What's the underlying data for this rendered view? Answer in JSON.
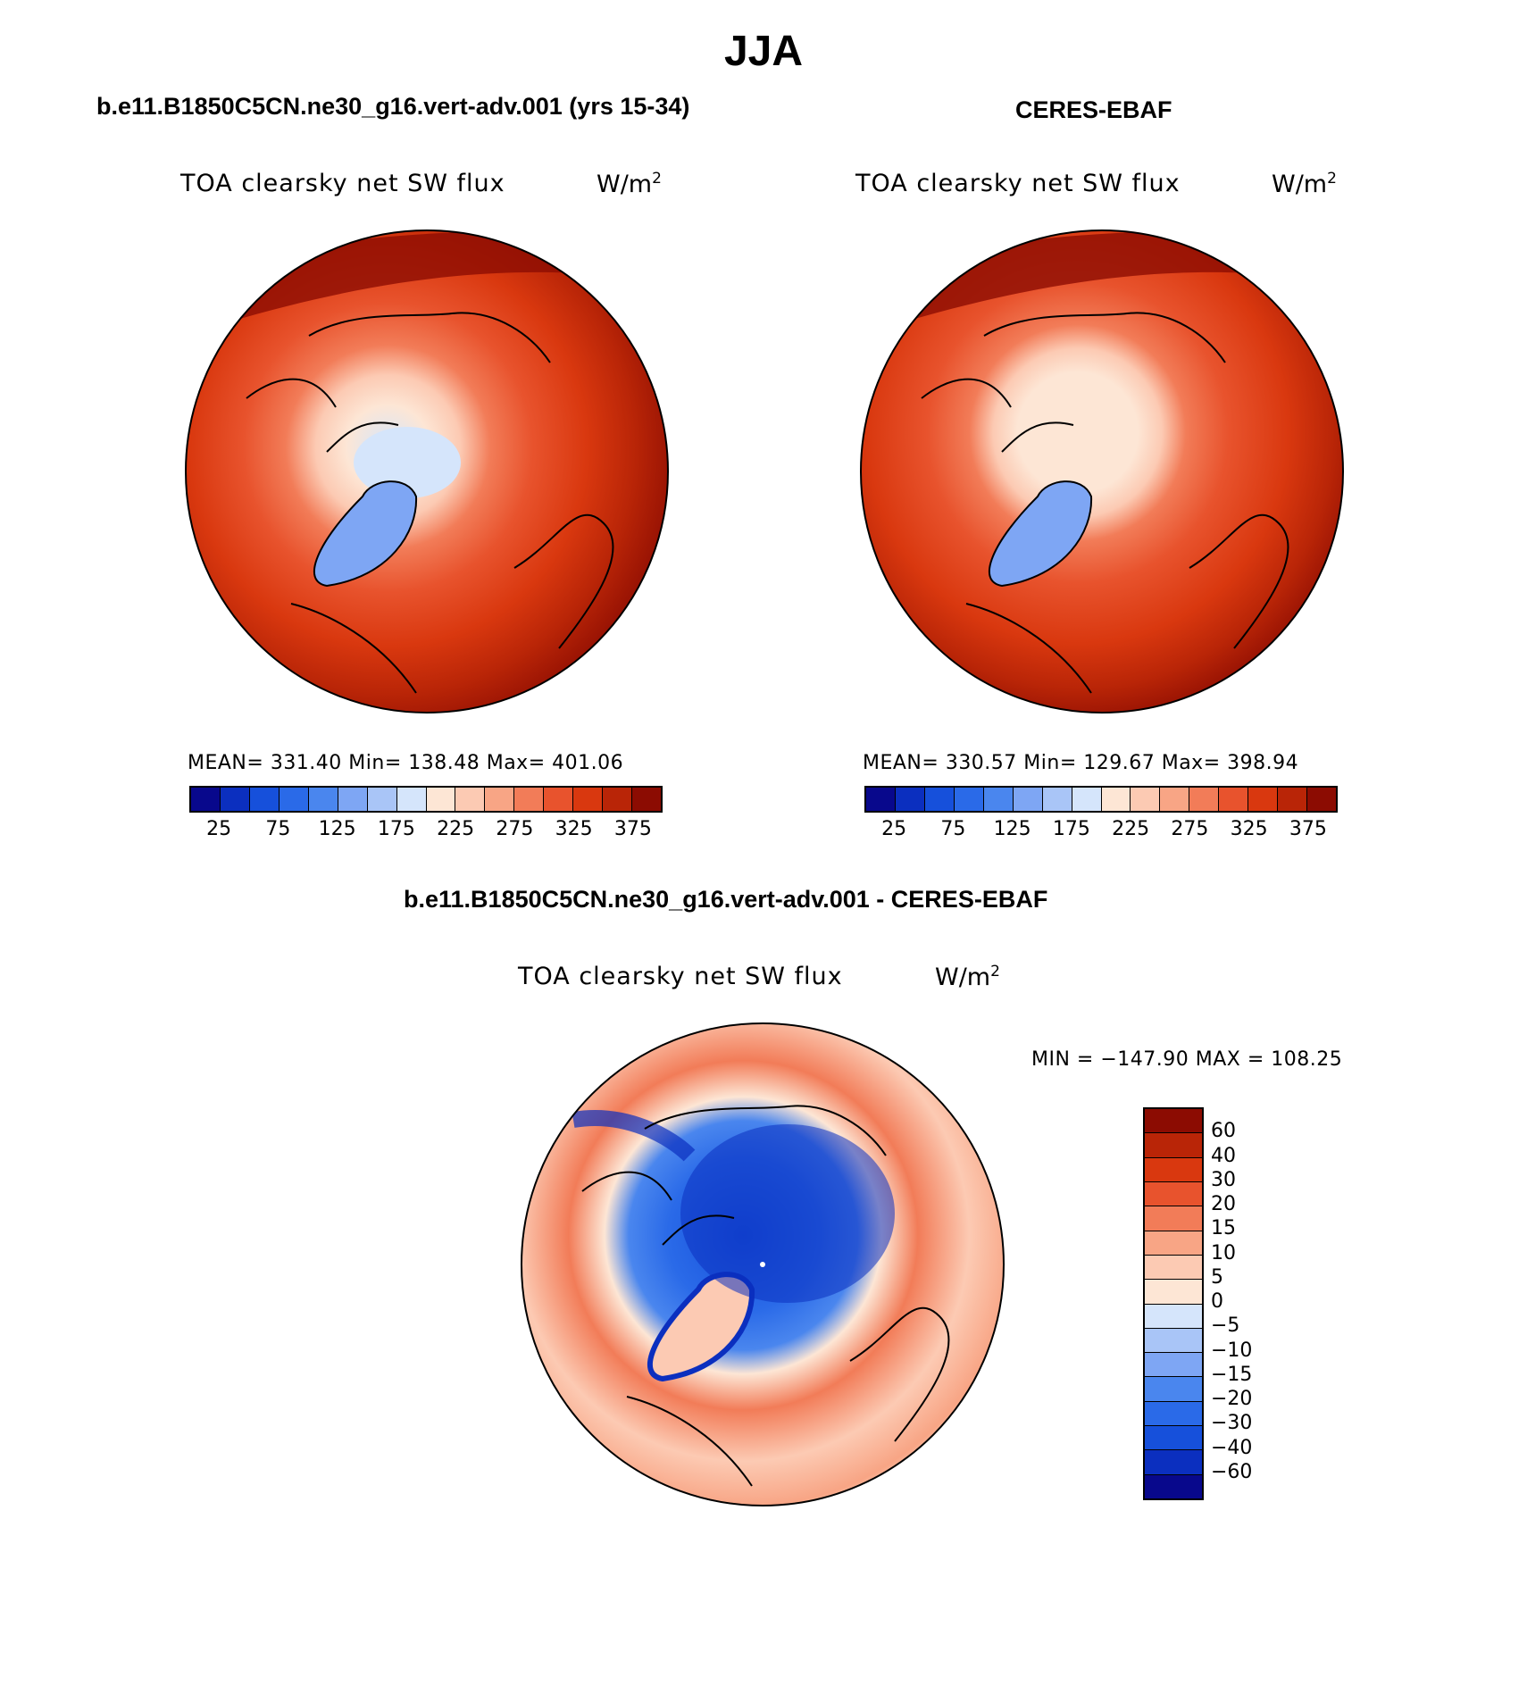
{
  "figure": {
    "title": "JJA"
  },
  "panels": [
    {
      "title": "b.e11.B1850C5CN.ne30_g16.vert-adv.001 (yrs 15-34)",
      "variable": "TOA clearsky net SW flux",
      "unit": "W/m",
      "unit_exp": "2",
      "stats": "MEAN= 331.40   Min= 138.48   Max= 401.06",
      "colorbar_ticks": [
        "25",
        "75",
        "125",
        "175",
        "225",
        "275",
        "325",
        "375"
      ]
    },
    {
      "title": "CERES-EBAF",
      "variable": "TOA clearsky net SW flux",
      "unit": "W/m",
      "unit_exp": "2",
      "stats": "MEAN= 330.57   Min= 129.67   Max= 398.94",
      "colorbar_ticks": [
        "25",
        "75",
        "125",
        "175",
        "225",
        "275",
        "325",
        "375"
      ]
    },
    {
      "title": "b.e11.B1850C5CN.ne30_g16.vert-adv.001 - CERES-EBAF",
      "variable": "TOA clearsky net SW flux",
      "unit": "W/m",
      "unit_exp": "2",
      "stats": "MIN = −147.90 MAX = 108.25",
      "colorbar_ticks": [
        "60",
        "40",
        "30",
        "20",
        "15",
        "10",
        "5",
        "0",
        "−5",
        "−10",
        "−15",
        "−20",
        "−30",
        "−40",
        "−60"
      ]
    }
  ],
  "colors": {
    "abs_scale": [
      "#08088c",
      "#0b2fbf",
      "#1650db",
      "#2a6ae8",
      "#4a86ee",
      "#7ea6f4",
      "#a9c5f7",
      "#d5e5fb",
      "#fde6d5",
      "#fccab3",
      "#f8a585",
      "#f27c58",
      "#e8532d",
      "#d9380f",
      "#b92507",
      "#8c0c02"
    ],
    "diff_scale": [
      "#8c0c02",
      "#b92507",
      "#d9380f",
      "#e8532d",
      "#f27c58",
      "#f8a585",
      "#fccab3",
      "#fde6d5",
      "#d5e5fb",
      "#a9c5f7",
      "#7ea6f4",
      "#4a86ee",
      "#2a6ae8",
      "#1650db",
      "#0b2fbf",
      "#08088c"
    ]
  }
}
